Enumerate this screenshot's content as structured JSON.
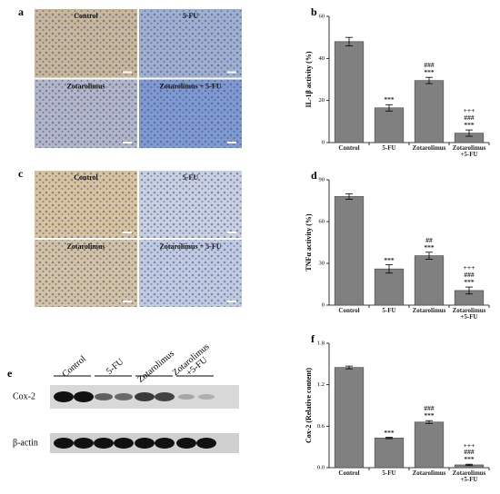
{
  "panels": [
    {
      "letter": "a",
      "images": [
        "Control",
        "5-FU",
        "Zotarolimus",
        "Zotarolimus + 5-FU"
      ]
    },
    {
      "letter": "c",
      "images": [
        "Control",
        "5-FU",
        "Zotarolimus",
        "Zotarolimus + 5-FU"
      ]
    }
  ],
  "blot": {
    "letter": "e",
    "lanes": [
      "Control",
      "5-FU",
      "Zotarolimus",
      "Zotarolimus\n+5-FU"
    ],
    "rows": [
      "Cox-2",
      "β-actin"
    ]
  },
  "chart_data": [
    {
      "type": "bar",
      "panel_label": "b",
      "y_label": "IL-1β activity (%)",
      "categories": [
        "Control",
        "5-FU",
        "Zotarolimus",
        "Zotarolimus\n+5-FU"
      ],
      "values": [
        48,
        16.5,
        29.5,
        4.5
      ],
      "errors": [
        2,
        1.5,
        1.5,
        1.5
      ],
      "annotations": [
        "",
        "***",
        "###\n***",
        "+++\n###\n***"
      ],
      "color": "#808080",
      "ylim": [
        0,
        60
      ],
      "yticks": [
        0,
        20,
        40,
        60
      ]
    },
    {
      "type": "bar",
      "panel_label": "d",
      "y_label": "TNFα activity (%)",
      "categories": [
        "Control",
        "5-FU",
        "Zotarolimus",
        "Zotarolimus\n+5-FU"
      ],
      "values": [
        78,
        26,
        35.5,
        10.5
      ],
      "errors": [
        2,
        3,
        2.5,
        2.5
      ],
      "annotations": [
        "",
        "***",
        "##\n***",
        "+++\n###\n***"
      ],
      "color": "#808080",
      "ylim": [
        0,
        90
      ],
      "yticks": [
        0,
        30,
        60,
        90
      ]
    },
    {
      "type": "bar",
      "panel_label": "f",
      "y_label": "Cox-2 (Relative content)",
      "categories": [
        "Control",
        "5-FU",
        "Zotarolimus",
        "Zotarolimus\n+5-FU"
      ],
      "values": [
        1.45,
        0.43,
        0.66,
        0.04
      ],
      "errors": [
        0.02,
        0.01,
        0.02,
        0.01
      ],
      "annotations": [
        "",
        "***",
        "###\n***",
        "+++\n###\n***"
      ],
      "color": "#808080",
      "ylim": [
        0,
        1.8
      ],
      "yticks": [
        {
          "value": 0,
          "label": "0.0"
        },
        0.6,
        1.2,
        1.8
      ]
    }
  ]
}
